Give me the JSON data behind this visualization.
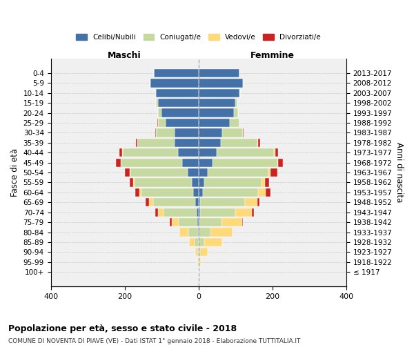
{
  "age_groups": [
    "100+",
    "95-99",
    "90-94",
    "85-89",
    "80-84",
    "75-79",
    "70-74",
    "65-69",
    "60-64",
    "55-59",
    "50-54",
    "45-49",
    "40-44",
    "35-39",
    "30-34",
    "25-29",
    "20-24",
    "15-19",
    "10-14",
    "5-9",
    "0-4"
  ],
  "birth_years": [
    "≤ 1917",
    "1918-1922",
    "1923-1927",
    "1928-1932",
    "1933-1937",
    "1938-1942",
    "1943-1947",
    "1948-1952",
    "1953-1957",
    "1958-1962",
    "1963-1967",
    "1968-1972",
    "1973-1977",
    "1978-1982",
    "1983-1987",
    "1988-1992",
    "1993-1997",
    "1998-2002",
    "2003-2007",
    "2008-2012",
    "2013-2017"
  ],
  "colors": {
    "celibi": "#4472a8",
    "coniugati": "#c5d9a0",
    "vedovi": "#ffd97a",
    "divorziati": "#cc2222"
  },
  "maschi": {
    "celibi": [
      0,
      0,
      0,
      0,
      2,
      3,
      5,
      8,
      15,
      18,
      30,
      45,
      55,
      65,
      65,
      90,
      100,
      110,
      115,
      130,
      120
    ],
    "coniugati": [
      0,
      1,
      3,
      10,
      25,
      50,
      90,
      115,
      140,
      155,
      155,
      165,
      150,
      100,
      50,
      20,
      10,
      5,
      2,
      2,
      1
    ],
    "vedovi": [
      0,
      2,
      5,
      15,
      25,
      20,
      15,
      10,
      5,
      3,
      2,
      1,
      1,
      0,
      0,
      0,
      0,
      0,
      0,
      0,
      0
    ],
    "divorziati": [
      0,
      0,
      0,
      0,
      0,
      5,
      8,
      10,
      12,
      10,
      12,
      12,
      8,
      5,
      2,
      1,
      0,
      0,
      0,
      0,
      0
    ]
  },
  "femmine": {
    "celibi": [
      0,
      0,
      0,
      0,
      2,
      3,
      5,
      5,
      12,
      15,
      25,
      38,
      50,
      60,
      65,
      85,
      95,
      100,
      110,
      120,
      110
    ],
    "coniugati": [
      0,
      2,
      5,
      15,
      30,
      60,
      95,
      120,
      150,
      155,
      165,
      175,
      155,
      100,
      55,
      25,
      12,
      5,
      2,
      2,
      1
    ],
    "vedovi": [
      1,
      5,
      20,
      50,
      60,
      55,
      45,
      35,
      20,
      10,
      5,
      3,
      2,
      1,
      0,
      0,
      0,
      0,
      0,
      0,
      0
    ],
    "divorziati": [
      0,
      0,
      0,
      0,
      0,
      2,
      5,
      5,
      12,
      12,
      18,
      12,
      8,
      5,
      2,
      1,
      0,
      0,
      0,
      0,
      0
    ]
  },
  "title": "Popolazione per età, sesso e stato civile - 2018",
  "subtitle": "COMUNE DI NOVENTA DI PIAVE (VE) - Dati ISTAT 1° gennaio 2018 - Elaborazione TUTTITALIA.IT",
  "xlabel_left": "Maschi",
  "xlabel_right": "Femmine",
  "ylabel_left": "Fasce di età",
  "ylabel_right": "Anni di nascita",
  "xlim": 400,
  "legend_labels": [
    "Celibi/Nubili",
    "Coniugati/e",
    "Vedovi/e",
    "Divorziati/e"
  ],
  "background_color": "#ffffff",
  "grid_color": "#cccccc"
}
